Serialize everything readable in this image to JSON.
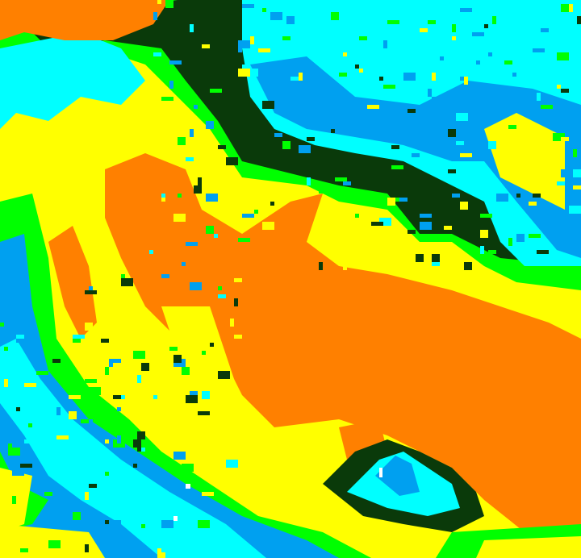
{
  "map": {
    "kind": "classified satellite image",
    "palette": {
      "orange": "#ff8000",
      "yellow": "#ffff00",
      "green": "#00ff00",
      "dark_green": "#0a3a0a",
      "cyan": "#00ffff",
      "blue": "#00a0f0",
      "white": "#ffffff"
    },
    "icons": []
  }
}
